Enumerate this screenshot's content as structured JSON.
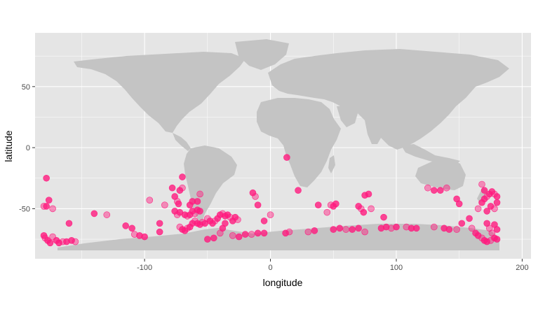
{
  "chart_data": {
    "type": "scatter",
    "title": "",
    "xlabel": "longitude",
    "ylabel": "latitude",
    "xlim": [
      -187,
      207
    ],
    "ylim": [
      -91,
      94
    ],
    "x_ticks": [
      -100,
      0,
      100,
      200
    ],
    "y_ticks": [
      -50,
      0,
      50
    ],
    "x_tick_labels": [
      "-100",
      "0",
      "100",
      "200"
    ],
    "y_tick_labels": [
      "-50",
      "0",
      "50"
    ],
    "grid": true,
    "legend": "none",
    "colors": {
      "panel": "#e5e5e5",
      "grid": "#ffffff",
      "land": "#c4c4c4",
      "point": "#ff1a7e",
      "point_faint": "#f3a6c8"
    },
    "background_layer": "world land polygons (map outline)",
    "points": [
      {
        "x": -180,
        "y": -48
      },
      {
        "x": -178,
        "y": -48
      },
      {
        "x": -176,
        "y": -43
      },
      {
        "x": -173,
        "y": -50
      },
      {
        "x": -178,
        "y": -25
      },
      {
        "x": -180,
        "y": -72
      },
      {
        "x": -179,
        "y": -74
      },
      {
        "x": -177,
        "y": -76
      },
      {
        "x": -175,
        "y": -78
      },
      {
        "x": -173,
        "y": -73
      },
      {
        "x": -170,
        "y": -76
      },
      {
        "x": -168,
        "y": -78
      },
      {
        "x": -165,
        "y": -77
      },
      {
        "x": -162,
        "y": -77
      },
      {
        "x": -158,
        "y": -76
      },
      {
        "x": -155,
        "y": -77
      },
      {
        "x": -160,
        "y": -62
      },
      {
        "x": -140,
        "y": -54
      },
      {
        "x": -130,
        "y": -55
      },
      {
        "x": -115,
        "y": -64
      },
      {
        "x": -110,
        "y": -66
      },
      {
        "x": -108,
        "y": -71
      },
      {
        "x": -104,
        "y": -72
      },
      {
        "x": -100,
        "y": -73
      },
      {
        "x": -96,
        "y": -43
      },
      {
        "x": -88,
        "y": -69
      },
      {
        "x": -88,
        "y": -62
      },
      {
        "x": -84,
        "y": -47
      },
      {
        "x": -78,
        "y": -33
      },
      {
        "x": -76,
        "y": -40
      },
      {
        "x": -74,
        "y": -44
      },
      {
        "x": -73,
        "y": -46
      },
      {
        "x": -72,
        "y": -35
      },
      {
        "x": -70,
        "y": -33
      },
      {
        "x": -70,
        "y": -24
      },
      {
        "x": -76,
        "y": -52
      },
      {
        "x": -74,
        "y": -55
      },
      {
        "x": -72,
        "y": -53
      },
      {
        "x": -68,
        "y": -55
      },
      {
        "x": -66,
        "y": -56
      },
      {
        "x": -64,
        "y": -55
      },
      {
        "x": -62,
        "y": -52
      },
      {
        "x": -60,
        "y": -54
      },
      {
        "x": -58,
        "y": -51
      },
      {
        "x": -56,
        "y": -52
      },
      {
        "x": -60,
        "y": -60
      },
      {
        "x": -62,
        "y": -62
      },
      {
        "x": -64,
        "y": -65
      },
      {
        "x": -66,
        "y": -66
      },
      {
        "x": -68,
        "y": -68
      },
      {
        "x": -70,
        "y": -67
      },
      {
        "x": -72,
        "y": -65
      },
      {
        "x": -58,
        "y": -62
      },
      {
        "x": -56,
        "y": -63
      },
      {
        "x": -54,
        "y": -61
      },
      {
        "x": -52,
        "y": -62
      },
      {
        "x": -58,
        "y": -44
      },
      {
        "x": -56,
        "y": -38
      },
      {
        "x": -62,
        "y": -44
      },
      {
        "x": -64,
        "y": -47
      },
      {
        "x": -50,
        "y": -58
      },
      {
        "x": -48,
        "y": -60
      },
      {
        "x": -46,
        "y": -62
      },
      {
        "x": -44,
        "y": -60
      },
      {
        "x": -42,
        "y": -58
      },
      {
        "x": -40,
        "y": -55
      },
      {
        "x": -38,
        "y": -54
      },
      {
        "x": -36,
        "y": -56
      },
      {
        "x": -34,
        "y": -55
      },
      {
        "x": -32,
        "y": -57
      },
      {
        "x": -30,
        "y": -60
      },
      {
        "x": -28,
        "y": -57
      },
      {
        "x": -26,
        "y": -59
      },
      {
        "x": -36,
        "y": -62
      },
      {
        "x": -38,
        "y": -66
      },
      {
        "x": -40,
        "y": -70
      },
      {
        "x": -45,
        "y": -74
      },
      {
        "x": -50,
        "y": -75
      },
      {
        "x": -30,
        "y": -72
      },
      {
        "x": -25,
        "y": -73
      },
      {
        "x": -20,
        "y": -71
      },
      {
        "x": -15,
        "y": -71
      },
      {
        "x": -10,
        "y": -70
      },
      {
        "x": -14,
        "y": -37
      },
      {
        "x": -12,
        "y": -40
      },
      {
        "x": -10,
        "y": -47
      },
      {
        "x": -5,
        "y": -60
      },
      {
        "x": 0,
        "y": -55
      },
      {
        "x": -5,
        "y": -70
      },
      {
        "x": 12,
        "y": -70
      },
      {
        "x": 15,
        "y": -69
      },
      {
        "x": 13,
        "y": -8
      },
      {
        "x": 22,
        "y": -35
      },
      {
        "x": 30,
        "y": -69
      },
      {
        "x": 35,
        "y": -68
      },
      {
        "x": 38,
        "y": -47
      },
      {
        "x": 45,
        "y": -53
      },
      {
        "x": 50,
        "y": -48
      },
      {
        "x": 52,
        "y": -46
      },
      {
        "x": 48,
        "y": -47
      },
      {
        "x": 50,
        "y": -67
      },
      {
        "x": 55,
        "y": -66
      },
      {
        "x": 60,
        "y": -67
      },
      {
        "x": 65,
        "y": -67
      },
      {
        "x": 70,
        "y": -48
      },
      {
        "x": 72,
        "y": -50
      },
      {
        "x": 74,
        "y": -53
      },
      {
        "x": 70,
        "y": -66
      },
      {
        "x": 75,
        "y": -69
      },
      {
        "x": 75,
        "y": -39
      },
      {
        "x": 78,
        "y": -38
      },
      {
        "x": 80,
        "y": -50
      },
      {
        "x": 88,
        "y": -66
      },
      {
        "x": 92,
        "y": -65
      },
      {
        "x": 96,
        "y": -66
      },
      {
        "x": 100,
        "y": -65
      },
      {
        "x": 90,
        "y": -57
      },
      {
        "x": 108,
        "y": -65
      },
      {
        "x": 112,
        "y": -66
      },
      {
        "x": 116,
        "y": -66
      },
      {
        "x": 125,
        "y": -33
      },
      {
        "x": 130,
        "y": -35
      },
      {
        "x": 135,
        "y": -35
      },
      {
        "x": 140,
        "y": -33
      },
      {
        "x": 148,
        "y": -42
      },
      {
        "x": 150,
        "y": -46
      },
      {
        "x": 130,
        "y": -65
      },
      {
        "x": 138,
        "y": -66
      },
      {
        "x": 142,
        "y": -67
      },
      {
        "x": 148,
        "y": -67
      },
      {
        "x": 152,
        "y": -62
      },
      {
        "x": 158,
        "y": -58
      },
      {
        "x": 160,
        "y": -66
      },
      {
        "x": 163,
        "y": -70
      },
      {
        "x": 165,
        "y": -72
      },
      {
        "x": 168,
        "y": -74
      },
      {
        "x": 170,
        "y": -76
      },
      {
        "x": 172,
        "y": -77
      },
      {
        "x": 175,
        "y": -76
      },
      {
        "x": 178,
        "y": -74
      },
      {
        "x": 180,
        "y": -75
      },
      {
        "x": 165,
        "y": -50
      },
      {
        "x": 168,
        "y": -45
      },
      {
        "x": 170,
        "y": -42
      },
      {
        "x": 172,
        "y": -40
      },
      {
        "x": 174,
        "y": -38
      },
      {
        "x": 176,
        "y": -36
      },
      {
        "x": 178,
        "y": -38
      },
      {
        "x": 180,
        "y": -40
      },
      {
        "x": 180,
        "y": -45
      },
      {
        "x": 178,
        "y": -50
      },
      {
        "x": 175,
        "y": -48
      },
      {
        "x": 172,
        "y": -52
      },
      {
        "x": 168,
        "y": -30
      },
      {
        "x": 170,
        "y": -35
      },
      {
        "x": 172,
        "y": -62
      },
      {
        "x": 174,
        "y": -66
      },
      {
        "x": 178,
        "y": -63
      },
      {
        "x": 180,
        "y": -67
      },
      {
        "x": 176,
        "y": -70
      }
    ]
  }
}
